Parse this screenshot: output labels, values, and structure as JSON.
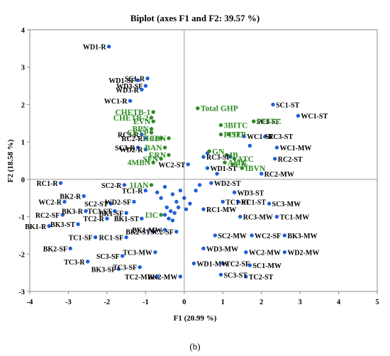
{
  "chart_data": {
    "type": "scatter",
    "title": "Biplot  (axes F1 and F2: 39.57 %)",
    "xlabel": "F1 (20.99 %)",
    "ylabel": "F2 (18.58 %)",
    "xlim": [
      -4,
      5
    ],
    "ylim": [
      -3,
      4
    ],
    "xticks": [
      "-4",
      "-3",
      "-2",
      "-1",
      "0",
      "1",
      "2",
      "3",
      "4",
      "5"
    ],
    "yticks": [
      "-3",
      "-2",
      "-1",
      "0",
      "1",
      "2",
      "3",
      "4"
    ],
    "grid": false,
    "caption": "(b)",
    "colors": {
      "observations": "#1f5fd6",
      "variables": "#2e8b22",
      "axes": "#999999",
      "frame": "#888888"
    },
    "series": [
      {
        "name": "observations",
        "points": [
          {
            "label": "WD1-R",
            "x": -1.95,
            "y": 3.55
          },
          {
            "label": "SC1-R",
            "x": -0.95,
            "y": 2.7
          },
          {
            "label": "WD1-SF",
            "x": -1.2,
            "y": 2.65
          },
          {
            "label": "WD3-SF",
            "x": -1.0,
            "y": 2.5
          },
          {
            "label": "WD3-R",
            "x": -1.1,
            "y": 2.4
          },
          {
            "label": "WC1-R",
            "x": -1.4,
            "y": 2.1
          },
          {
            "label": "RC2-R",
            "x": -1.0,
            "y": 1.1
          },
          {
            "label": "RC3-R",
            "x": -1.1,
            "y": 1.2
          },
          {
            "label": "WD2-R",
            "x": -1.0,
            "y": 0.8
          },
          {
            "label": "SC3-R",
            "x": -1.2,
            "y": 0.85
          },
          {
            "label": "SC1-SF",
            "x": 1.8,
            "y": 1.55
          },
          {
            "label": "SC1-ST",
            "x": 2.3,
            "y": 2.0
          },
          {
            "label": "WC1-ST",
            "x": 2.95,
            "y": 1.7
          },
          {
            "label": "WC1-SF",
            "x": 1.55,
            "y": 1.15
          },
          {
            "label": "RC3-ST",
            "x": 2.1,
            "y": 1.15
          },
          {
            "label": "WC1-MW",
            "x": 2.4,
            "y": 0.85
          },
          {
            "label": "RC2-ST",
            "x": 2.35,
            "y": 0.55
          },
          {
            "label": "RC2-MW",
            "x": 2.0,
            "y": 0.15
          },
          {
            "label": "RC3-SF",
            "x": 0.5,
            "y": 0.6
          },
          {
            "label": "WC2-ST",
            "x": 0.1,
            "y": 0.4
          },
          {
            "label": "WD1-ST",
            "x": 0.6,
            "y": 0.3
          },
          {
            "label": "RC1-R",
            "x": -3.2,
            "y": -0.1
          },
          {
            "label": "SC2-R",
            "x": -1.55,
            "y": -0.15
          },
          {
            "label": "TC1-R",
            "x": -1.0,
            "y": -0.3
          },
          {
            "label": "BK2-R",
            "x": -2.6,
            "y": -0.45
          },
          {
            "label": "WC2-R",
            "x": -3.1,
            "y": -0.6
          },
          {
            "label": "WD2-SF",
            "x": -1.3,
            "y": -0.6
          },
          {
            "label": "SC2-ST",
            "x": -1.9,
            "y": -0.65
          },
          {
            "label": "BK3-R",
            "x": -2.55,
            "y": -0.85
          },
          {
            "label": "TC3-ST",
            "x": -1.8,
            "y": -0.85
          },
          {
            "label": "BK1-SF",
            "x": -1.5,
            "y": -0.9
          },
          {
            "label": "RC2-SF",
            "x": -3.15,
            "y": -0.95
          },
          {
            "label": "TC2-R",
            "x": -2.0,
            "y": -1.05
          },
          {
            "label": "BK1-ST",
            "x": -1.1,
            "y": -1.05
          },
          {
            "label": "BK1-R",
            "x": -3.5,
            "y": -1.25
          },
          {
            "label": "BK3-ST",
            "x": -2.75,
            "y": -1.2
          },
          {
            "label": "BK1-MW",
            "x": -0.5,
            "y": -1.35
          },
          {
            "label": "TC1-SF",
            "x": -2.3,
            "y": -1.55
          },
          {
            "label": "RC1-SF",
            "x": -1.5,
            "y": -1.55
          },
          {
            "label": "BK2-ST",
            "x": -0.8,
            "y": -1.4
          },
          {
            "label": "SC2-SF",
            "x": -0.2,
            "y": -1.4
          },
          {
            "label": "BK2-SF",
            "x": -2.95,
            "y": -1.85
          },
          {
            "label": "TC3-MW",
            "x": -0.75,
            "y": -1.95
          },
          {
            "label": "SC3-SF",
            "x": -1.6,
            "y": -2.05
          },
          {
            "label": "TC3-R",
            "x": -2.5,
            "y": -2.2
          },
          {
            "label": "TC3-SF",
            "x": -1.15,
            "y": -2.35
          },
          {
            "label": "BK3-SF",
            "x": -1.7,
            "y": -2.4
          },
          {
            "label": "TC2-MW",
            "x": -0.7,
            "y": -2.6
          },
          {
            "label": "BK2-MW",
            "x": -0.1,
            "y": -2.6
          },
          {
            "label": "WD1-MW",
            "x": 0.25,
            "y": -2.25
          },
          {
            "label": "TC2-SF",
            "x": 1.0,
            "y": -2.25
          },
          {
            "label": "SC1-MW",
            "x": 1.7,
            "y": -2.3
          },
          {
            "label": "SC3-ST",
            "x": 0.95,
            "y": -2.55
          },
          {
            "label": "TC2-ST",
            "x": 1.6,
            "y": -2.6
          },
          {
            "label": "WD3-MW",
            "x": 0.5,
            "y": -1.85
          },
          {
            "label": "WC2-MW",
            "x": 1.6,
            "y": -1.95
          },
          {
            "label": "WD2-MW",
            "x": 2.6,
            "y": -1.95
          },
          {
            "label": "SC2-MW",
            "x": 0.8,
            "y": -1.5
          },
          {
            "label": "WC2-SF",
            "x": 1.75,
            "y": -1.5
          },
          {
            "label": "BK3-MW",
            "x": 2.6,
            "y": -1.5
          },
          {
            "label": "RC3-MW",
            "x": 1.45,
            "y": -1.0
          },
          {
            "label": "TC1-MW",
            "x": 2.4,
            "y": -1.0
          },
          {
            "label": "SC3-MW",
            "x": 2.2,
            "y": -0.65
          },
          {
            "label": "WD3-ST",
            "x": 1.3,
            "y": -0.35
          },
          {
            "label": "WD2-ST",
            "x": 0.7,
            "y": -0.1
          },
          {
            "label": "RC1-MW",
            "x": 0.5,
            "y": -0.8
          },
          {
            "label": "TC1-ST",
            "x": 1.0,
            "y": -0.6
          },
          {
            "label": "RC1-ST",
            "x": 1.4,
            "y": -0.6
          },
          {
            "label": "",
            "x": -0.5,
            "y": -0.2
          },
          {
            "label": "",
            "x": -0.3,
            "y": -0.4
          },
          {
            "label": "",
            "x": -0.1,
            "y": -0.3
          },
          {
            "label": "",
            "x": 0.0,
            "y": -0.5
          },
          {
            "label": "",
            "x": -0.2,
            "y": -0.6
          },
          {
            "label": "",
            "x": -0.45,
            "y": -0.75
          },
          {
            "label": "",
            "x": -0.35,
            "y": -0.85
          },
          {
            "label": "",
            "x": -0.25,
            "y": -0.9
          },
          {
            "label": "",
            "x": -0.15,
            "y": -0.75
          },
          {
            "label": "",
            "x": -0.5,
            "y": -0.95
          },
          {
            "label": "",
            "x": -0.4,
            "y": -1.05
          },
          {
            "label": "",
            "x": -0.3,
            "y": -1.1
          },
          {
            "label": "",
            "x": 0.05,
            "y": -0.8
          },
          {
            "label": "",
            "x": 0.15,
            "y": -0.65
          },
          {
            "label": "",
            "x": 0.3,
            "y": -0.3
          },
          {
            "label": "",
            "x": 0.4,
            "y": -0.15
          },
          {
            "label": "",
            "x": -0.6,
            "y": -0.5
          },
          {
            "label": "",
            "x": -0.7,
            "y": -0.35
          },
          {
            "label": "",
            "x": 0.6,
            "y": 0.7
          },
          {
            "label": "",
            "x": 0.85,
            "y": 0.15
          },
          {
            "label": "",
            "x": 1.7,
            "y": 0.9
          },
          {
            "label": "",
            "x": 1.2,
            "y": 0.6
          }
        ]
      },
      {
        "name": "variables",
        "points": [
          {
            "label": "Total GHP",
            "x": 0.35,
            "y": 1.9
          },
          {
            "label": "PEITC",
            "x": 1.8,
            "y": 1.55
          },
          {
            "label": "3BITC",
            "x": 0.95,
            "y": 1.45
          },
          {
            "label": "PITC",
            "x": 0.95,
            "y": 1.2
          },
          {
            "label": "SFP",
            "x": 1.15,
            "y": 1.2
          },
          {
            "label": "EVN",
            "x": -0.8,
            "y": 1.55
          },
          {
            "label": "CHETB-2",
            "x": -0.85,
            "y": 1.65
          },
          {
            "label": "CHETB-1",
            "x": -0.8,
            "y": 1.8
          },
          {
            "label": "BPN",
            "x": -0.85,
            "y": 1.35
          },
          {
            "label": "CETP",
            "x": -0.85,
            "y": 1.25
          },
          {
            "label": "1H-I",
            "x": -0.6,
            "y": 1.1
          },
          {
            "label": "IBN",
            "x": -0.4,
            "y": 1.1
          },
          {
            "label": "BAN",
            "x": -0.5,
            "y": 0.85
          },
          {
            "label": "SFN",
            "x": -0.6,
            "y": 0.55
          },
          {
            "label": "ERN",
            "x": -0.4,
            "y": 0.65
          },
          {
            "label": "4MBN",
            "x": -0.8,
            "y": 0.45
          },
          {
            "label": "GN",
            "x": 0.65,
            "y": 0.75
          },
          {
            "label": "IB",
            "x": 1.1,
            "y": 0.65
          },
          {
            "label": "AITC",
            "x": 1.05,
            "y": 0.45
          },
          {
            "label": "ATC",
            "x": 1.3,
            "y": 0.55
          },
          {
            "label": "ER",
            "x": 1.25,
            "y": 0.4
          },
          {
            "label": "IBVN",
            "x": 1.5,
            "y": 0.3
          },
          {
            "label": "1IAN",
            "x": -0.85,
            "y": -0.15
          },
          {
            "label": "I3C",
            "x": -0.6,
            "y": -0.95
          }
        ]
      }
    ]
  }
}
